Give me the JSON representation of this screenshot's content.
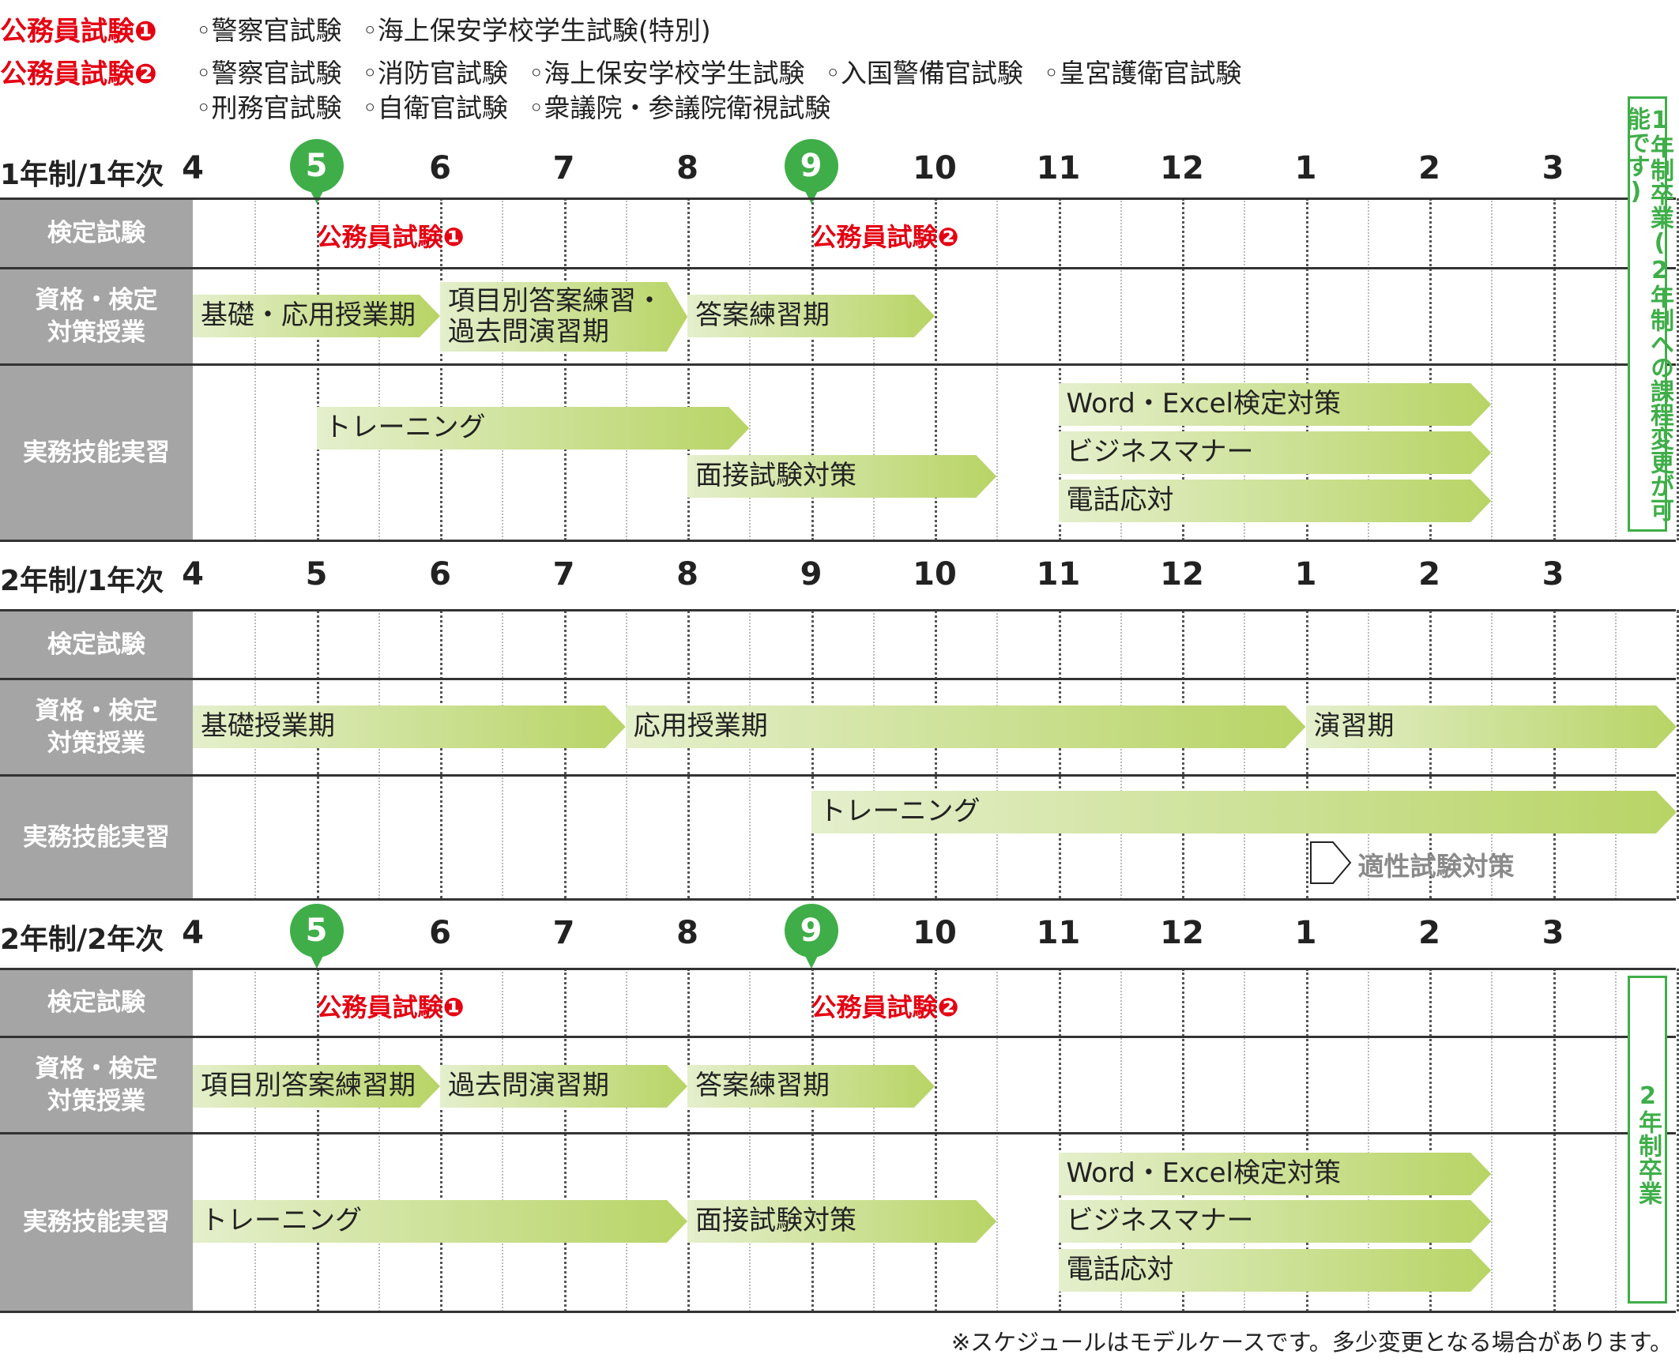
{
  "legend": [
    {
      "title": "公務員試験❶",
      "items": [
        "◦警察官試験",
        "◦海上保安学校学生試験(特別)"
      ]
    },
    {
      "title": "公務員試験❷",
      "items": [
        "◦警察官試験",
        "◦消防官試験",
        "◦海上保安学校学生試験",
        "◦入国警備官試験",
        "◦皇宮護衛官試験"
      ],
      "items2": [
        "◦刑務官試験",
        "◦自衛官試験",
        "◦衆議院・参議院衛視試験"
      ]
    }
  ],
  "months": [
    "4",
    "5",
    "6",
    "7",
    "8",
    "9",
    "10",
    "11",
    "12",
    "1",
    "2",
    "3"
  ],
  "row_labels": {
    "exam": "検定試験",
    "qual": "資格・検定\n対策授業",
    "work": "実務技能実習"
  },
  "colors": {
    "accent_red": "#e50012",
    "pin_green": "#3fae49",
    "bar_light": "#e4efcc",
    "bar_dark": "#b8d465",
    "label_gray": "#a5a5a5"
  },
  "sections": [
    {
      "title": "1年制/1年次",
      "highlight_months": [
        "5",
        "9"
      ],
      "exams": [
        {
          "label": "公務員試験❶",
          "month": "5"
        },
        {
          "label": "公務員試験❷",
          "month": "9"
        }
      ],
      "qual_bars": [
        {
          "label": "基礎・応用授業期",
          "start": 0,
          "end": 2
        },
        {
          "label": "項目別答案練習・\n過去問演習期",
          "start": 2,
          "end": 4
        },
        {
          "label": "答案練習期",
          "start": 4,
          "end": 6
        }
      ],
      "work_bars": [
        {
          "label": "トレーニング",
          "start": 1,
          "end": 4.5
        },
        {
          "label": "面接試験対策",
          "start": 4,
          "end": 6.5
        },
        {
          "label": "Word・Excel検定対策",
          "start": 7,
          "end": 10.5
        },
        {
          "label": "ビジネスマナー",
          "start": 7,
          "end": 10.5
        },
        {
          "label": "電話応対",
          "start": 7,
          "end": 10.5
        }
      ],
      "graduation": "1年制卒業(2年制への課程変更が可能です)"
    },
    {
      "title": "2年制/1年次",
      "highlight_months": [],
      "exams": [],
      "qual_bars": [
        {
          "label": "基礎授業期",
          "start": 0,
          "end": 3.5
        },
        {
          "label": "応用授業期",
          "start": 3.5,
          "end": 9
        },
        {
          "label": "演習期",
          "start": 9,
          "end": 12
        }
      ],
      "work_bars": [
        {
          "label": "トレーニング",
          "start": 5,
          "end": 12
        }
      ],
      "aptitude": {
        "label": "適性試験対策",
        "month": "1"
      }
    },
    {
      "title": "2年制/2年次",
      "highlight_months": [
        "5",
        "9"
      ],
      "exams": [
        {
          "label": "公務員試験❶",
          "month": "5"
        },
        {
          "label": "公務員試験❷",
          "month": "9"
        }
      ],
      "qual_bars": [
        {
          "label": "項目別答案練習期",
          "start": 0,
          "end": 2
        },
        {
          "label": "過去問演習期",
          "start": 2,
          "end": 4
        },
        {
          "label": "答案練習期",
          "start": 4,
          "end": 6
        }
      ],
      "work_bars": [
        {
          "label": "トレーニング",
          "start": 0,
          "end": 4
        },
        {
          "label": "面接試験対策",
          "start": 4,
          "end": 6.5
        },
        {
          "label": "Word・Excel検定対策",
          "start": 7,
          "end": 10.5
        },
        {
          "label": "ビジネスマナー",
          "start": 7,
          "end": 10.5
        },
        {
          "label": "電話応対",
          "start": 7,
          "end": 10.5
        }
      ],
      "graduation": "2年制卒業"
    }
  ],
  "footnote": "※スケジュールはモデルケースです。多少変更となる場合があります。"
}
